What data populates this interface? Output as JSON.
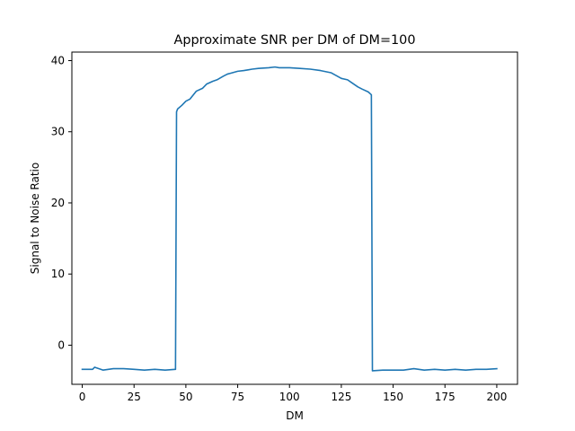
{
  "chart_data": {
    "type": "line",
    "title": "Approximate SNR per DM of DM=100",
    "xlabel": "DM",
    "ylabel": "Signal to Noise Ratio",
    "xlim": [
      -5,
      210
    ],
    "ylim": [
      -5.5,
      41.2
    ],
    "xticks": [
      0,
      25,
      50,
      75,
      100,
      125,
      150,
      175,
      200
    ],
    "yticks": [
      0,
      10,
      20,
      30,
      40
    ],
    "grid": false,
    "legend": "none",
    "series": [
      {
        "color": "#1f77b4",
        "x": [
          0,
          5,
          6,
          10,
          15,
          20,
          25,
          30,
          35,
          40,
          45,
          45.5,
          46,
          48,
          50,
          52,
          55,
          58,
          60,
          63,
          65,
          68,
          70,
          75,
          78,
          80,
          82,
          85,
          90,
          93,
          95,
          100,
          105,
          110,
          115,
          120,
          125,
          128,
          130,
          133,
          135,
          138,
          139.5,
          140,
          145,
          150,
          155,
          160,
          165,
          170,
          175,
          180,
          185,
          190,
          195,
          200
        ],
        "y": [
          -3.4,
          -3.4,
          -3.1,
          -3.5,
          -3.3,
          -3.3,
          -3.4,
          -3.5,
          -3.4,
          -3.5,
          -3.4,
          32.8,
          33.2,
          33.7,
          34.3,
          34.6,
          35.7,
          36.1,
          36.7,
          37.1,
          37.3,
          37.8,
          38.1,
          38.5,
          38.6,
          38.7,
          38.8,
          38.9,
          39.0,
          39.1,
          39.0,
          39.0,
          38.9,
          38.8,
          38.6,
          38.3,
          37.5,
          37.3,
          36.9,
          36.3,
          36.0,
          35.6,
          35.2,
          -3.6,
          -3.5,
          -3.5,
          -3.5,
          -3.3,
          -3.5,
          -3.4,
          -3.5,
          -3.4,
          -3.5,
          -3.4,
          -3.4,
          -3.3
        ]
      }
    ]
  }
}
